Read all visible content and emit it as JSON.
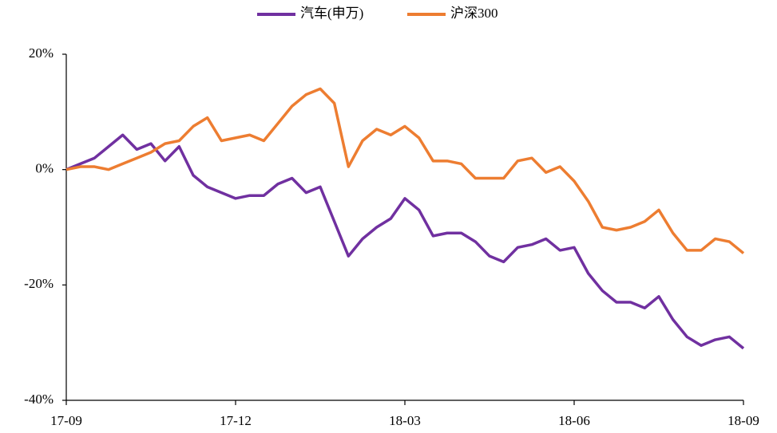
{
  "chart_data": {
    "type": "line",
    "categories": [
      "17-09",
      null,
      null,
      null,
      null,
      null,
      null,
      null,
      null,
      null,
      null,
      null,
      "17-12",
      null,
      null,
      null,
      null,
      null,
      null,
      null,
      null,
      null,
      null,
      null,
      "18-03",
      null,
      null,
      null,
      null,
      null,
      null,
      null,
      null,
      null,
      null,
      null,
      "18-06",
      null,
      null,
      null,
      null,
      null,
      null,
      null,
      null,
      null,
      null,
      null,
      "18-09"
    ],
    "series": [
      {
        "name": "汽车(申万)",
        "color": "#7030a0",
        "values": [
          0,
          1,
          2,
          4,
          6,
          3.5,
          4.5,
          1.5,
          4,
          -1,
          -3,
          -4,
          -5,
          -4.5,
          -4.5,
          -2.5,
          -1.5,
          -4,
          -3,
          -9,
          -15,
          -12,
          -10,
          -8.5,
          -5,
          -7,
          -11.5,
          -11,
          -11,
          -12.5,
          -15,
          -16,
          -13.5,
          -13,
          -12,
          -14,
          -13.5,
          -18,
          -21,
          -23,
          -23,
          -24,
          -22,
          -26,
          -29,
          -30.5,
          -29.5,
          -29,
          -31
        ]
      },
      {
        "name": "沪深300",
        "color": "#ed7d31",
        "values": [
          0,
          0.5,
          0.5,
          0,
          1,
          2,
          3,
          4.5,
          5,
          7.5,
          9,
          5,
          5.5,
          6,
          5,
          8,
          11,
          13,
          14,
          11.5,
          0.5,
          5,
          7,
          6,
          7.5,
          5.5,
          1.5,
          1.5,
          1,
          -1.5,
          -1.5,
          -1.5,
          1.5,
          2,
          -0.5,
          0.5,
          -2,
          -5.5,
          -10,
          -10.5,
          -10,
          -9,
          -7,
          -11,
          -14,
          -14,
          -12,
          -12.5,
          -14.5
        ]
      }
    ],
    "ylim": [
      -40,
      20
    ],
    "yticks": [
      {
        "value": -40,
        "label": "-40%"
      },
      {
        "value": -20,
        "label": "-20%"
      },
      {
        "value": 0,
        "label": "0%"
      },
      {
        "value": 20,
        "label": "20%"
      }
    ],
    "legend": "top"
  }
}
